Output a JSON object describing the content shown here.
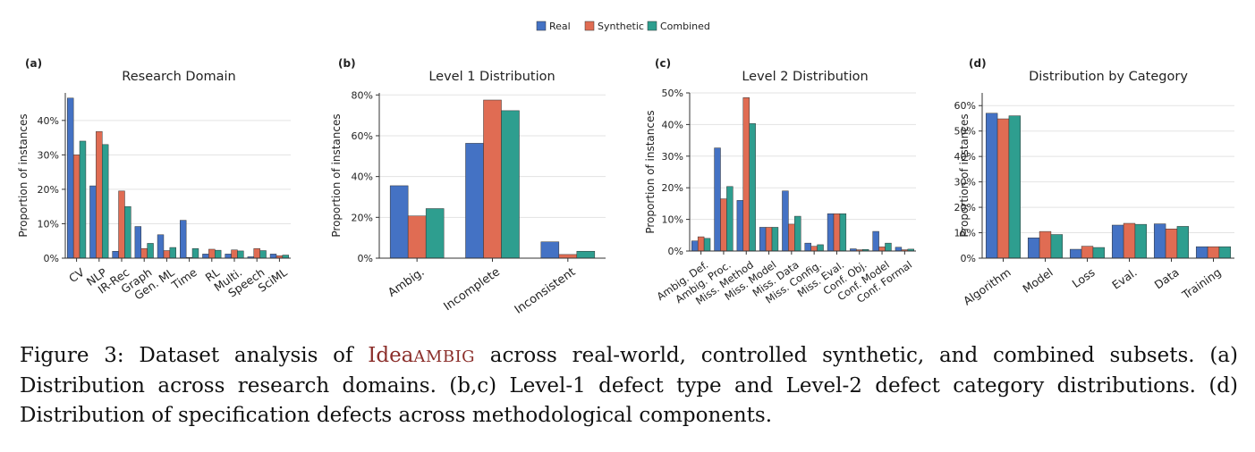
{
  "legend": {
    "items": [
      {
        "name": "Real",
        "color": "#4472c4"
      },
      {
        "name": "Synthetic",
        "color": "#e06c53"
      },
      {
        "name": "Combined",
        "color": "#2e9e8f"
      }
    ]
  },
  "chart_data": [
    {
      "panel": "(a)",
      "type": "bar",
      "title": "Research Domain",
      "ylabel": "Proportion of instances",
      "ylim": [
        0,
        48
      ],
      "yticks": [
        0,
        10,
        20,
        30,
        40
      ],
      "ytick_labels": [
        "0%",
        "10%",
        "20%",
        "30%",
        "40%"
      ],
      "categories": [
        "CV",
        "NLP",
        "IR-Rec",
        "Graph",
        "Gen. ML",
        "Time",
        "RL",
        "Multi.",
        "Speech",
        "SciML"
      ],
      "series": [
        {
          "name": "Real",
          "values": [
            46.5,
            21,
            2,
            9.2,
            6.8,
            11,
            1.2,
            1.2,
            0.4,
            1.2
          ]
        },
        {
          "name": "Synthetic",
          "values": [
            30,
            36.8,
            19.5,
            2.8,
            2.2,
            0.2,
            2.6,
            2.4,
            2.8,
            0.7
          ]
        },
        {
          "name": "Combined",
          "values": [
            34,
            33,
            15,
            4.3,
            3.1,
            2.8,
            2.3,
            2.1,
            2.2,
            0.9
          ]
        }
      ]
    },
    {
      "panel": "(b)",
      "type": "bar",
      "title": "Level 1 Distribution",
      "ylabel": "Proportion of instances",
      "ylim": [
        0,
        81
      ],
      "yticks": [
        0,
        20,
        40,
        60,
        80
      ],
      "ytick_labels": [
        "0%",
        "20%",
        "40%",
        "60%",
        "80%"
      ],
      "categories": [
        "Ambig.",
        "Incomplete",
        "Inconsistent"
      ],
      "series": [
        {
          "name": "Real",
          "values": [
            35.5,
            56.3,
            8
          ]
        },
        {
          "name": "Synthetic",
          "values": [
            20.7,
            77.5,
            1.8
          ]
        },
        {
          "name": "Combined",
          "values": [
            24.3,
            72.3,
            3.4
          ]
        }
      ]
    },
    {
      "panel": "(c)",
      "type": "bar",
      "title": "Level 2 Distribution",
      "ylabel": "Proportion of instances",
      "ylim": [
        0,
        50
      ],
      "yticks": [
        0,
        10,
        20,
        30,
        40,
        50
      ],
      "ytick_labels": [
        "0%",
        "10%",
        "20%",
        "30%",
        "40%",
        "50%"
      ],
      "categories": [
        "Ambig. Def.",
        "Ambig. Proc.",
        "Miss. Method",
        "Miss. Model",
        "Miss. Data",
        "Miss. Config.",
        "Miss. Eval.",
        "Conf. Obj.",
        "Conf. Model",
        "Conf. Formal"
      ],
      "series": [
        {
          "name": "Real",
          "values": [
            3.2,
            32.6,
            16,
            7.5,
            19,
            2.5,
            11.8,
            0.7,
            6.2,
            1.2
          ]
        },
        {
          "name": "Synthetic",
          "values": [
            4.5,
            16.5,
            48.5,
            7.5,
            8.5,
            1.5,
            11.8,
            0.4,
            1.3,
            0.4
          ]
        },
        {
          "name": "Combined",
          "values": [
            4,
            20.4,
            40.3,
            7.5,
            11,
            2,
            11.8,
            0.5,
            2.5,
            0.6
          ]
        }
      ]
    },
    {
      "panel": "(d)",
      "type": "bar",
      "title": "Distribution by Category",
      "ylabel": "Proportion of instances",
      "ylim": [
        0,
        65
      ],
      "yticks": [
        0,
        10,
        20,
        30,
        40,
        50,
        60
      ],
      "ytick_labels": [
        "0%",
        "10%",
        "20%",
        "30%",
        "40%",
        "50%",
        "60%"
      ],
      "categories": [
        "Algorithm",
        "Model",
        "Loss",
        "Eval.",
        "Data",
        "Training"
      ],
      "series": [
        {
          "name": "Real",
          "values": [
            57,
            8,
            3.5,
            13,
            13.5,
            4.5
          ]
        },
        {
          "name": "Synthetic",
          "values": [
            54.8,
            10.5,
            4.7,
            13.7,
            11.5,
            4.5
          ]
        },
        {
          "name": "Combined",
          "values": [
            56,
            9.3,
            4.2,
            13.3,
            12.5,
            4.5
          ]
        }
      ]
    }
  ],
  "caption": {
    "prefix": "Figure 3: Dataset analysis of ",
    "name_first": "Idea",
    "name_rest": "AMBIG",
    "suffix": " across real-world, controlled synthetic, and combined subsets. (a) Distribution across research domains. (b,c) Level-1 defect type and Level-2 defect category distributions. (d) Distribution of specification defects across methodological components."
  }
}
